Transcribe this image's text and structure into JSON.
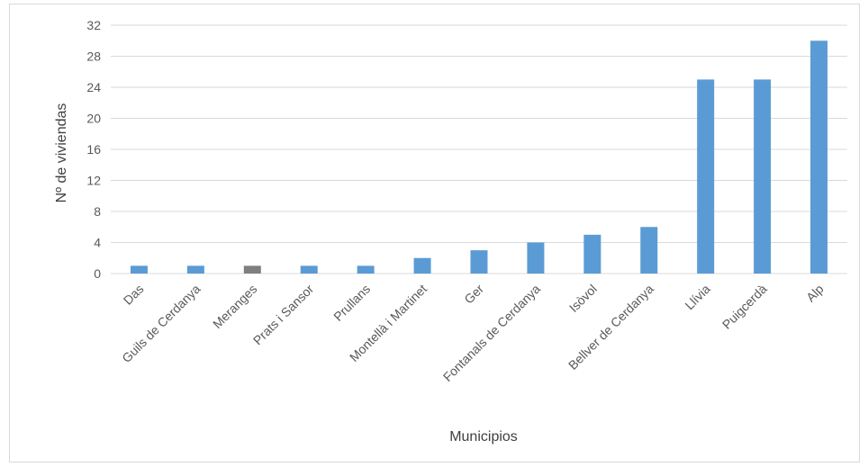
{
  "chart_data": {
    "type": "bar",
    "title": "",
    "xlabel": "Municipios",
    "ylabel": "Nº de viviendas",
    "categories": [
      "Das",
      "Guils de Cerdanya",
      "Meranges",
      "Prats i Sansor",
      "Prullans",
      "Montellà i Martinet",
      "Ger",
      "Fontanals de Cerdanya",
      "Isòvol",
      "Bellver de Cerdanya",
      "Llívia",
      "Puigcerdà",
      "Alp"
    ],
    "values": [
      1,
      1,
      1,
      1,
      1,
      2,
      3,
      4,
      5,
      6,
      25,
      25,
      30
    ],
    "ylim": [
      0,
      32
    ],
    "yticks": [
      0,
      4,
      8,
      12,
      16,
      20,
      24,
      28,
      32
    ],
    "grid": true,
    "legend": "none",
    "colors": {
      "bar": "#5b9bd5",
      "bar_highlight": "#7f7f7f",
      "grid": "#d9d9d9",
      "text": "#595959"
    },
    "highlight_index": 2
  }
}
